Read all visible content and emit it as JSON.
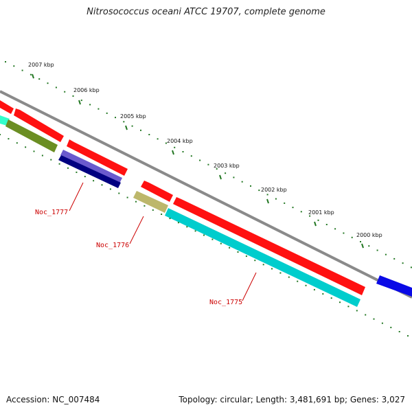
{
  "title": "Nitrosococcus oceani ATCC 19707, complete genome",
  "accession_text": "Accession: NC_007484",
  "summary_text": "Topology: circular; Length: 3,481,691 bp; Genes: 3,027",
  "scale_labels": [
    "2007 kbp",
    "2006 kbp",
    "2005 kbp",
    "2004 kbp",
    "2003 kbp",
    "2002 kbp",
    "2001 kbp",
    "2000 kbp"
  ],
  "gene_labels": [
    "Noc_1777",
    "Noc_1776",
    "Noc_1775"
  ],
  "colors": {
    "backbone": "#8c8c8c",
    "forward_cds": "#ff0000",
    "reverse_cds": "#00cccc",
    "tick": "#227722",
    "label_red": "#cc0000"
  }
}
